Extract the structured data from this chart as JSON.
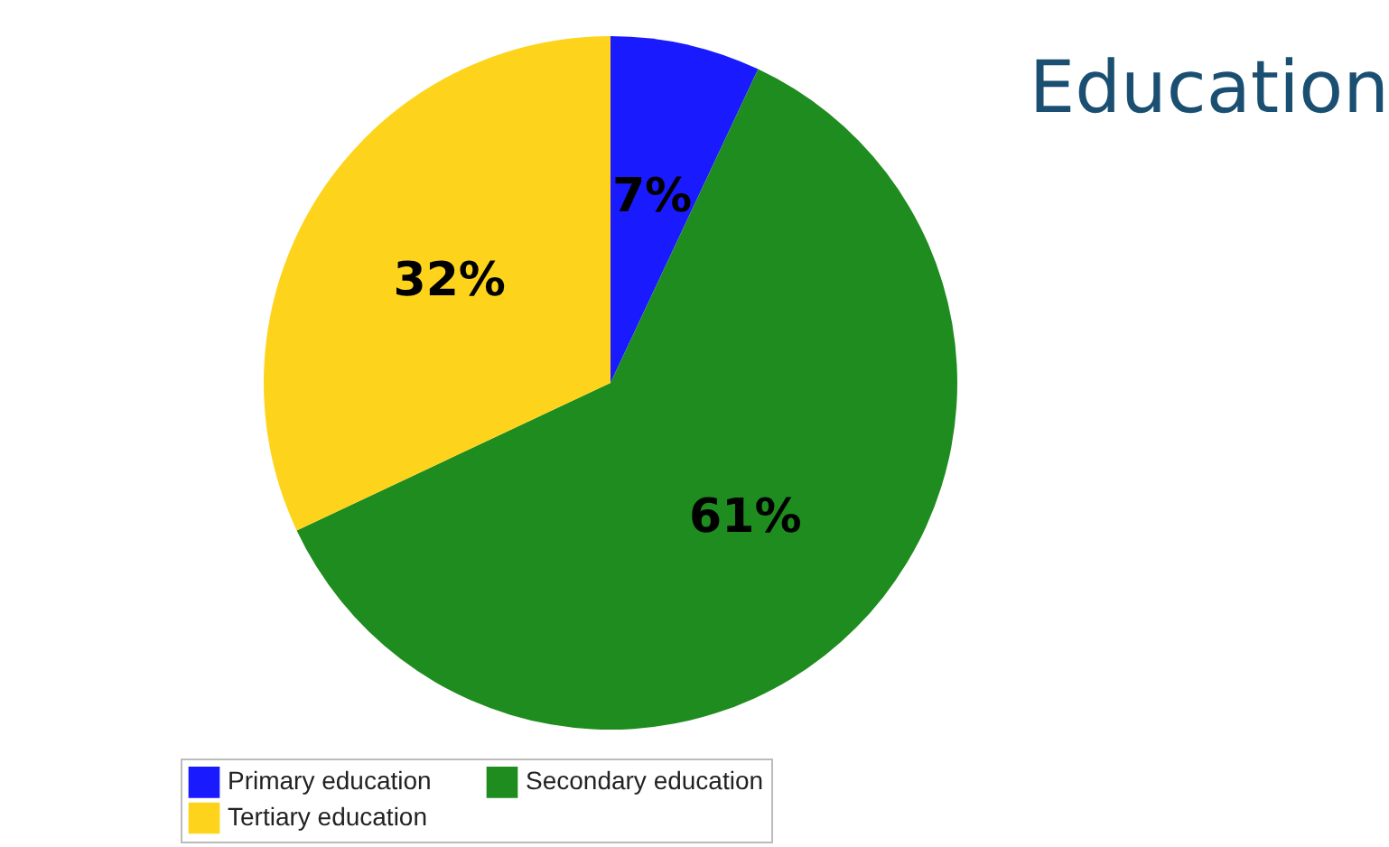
{
  "chart_data": {
    "type": "pie",
    "title": "Education",
    "categories": [
      "Primary education",
      "Secondary education",
      "Tertiary education"
    ],
    "values": [
      7,
      61,
      32
    ],
    "value_labels": [
      "7%",
      "61%",
      "32%"
    ],
    "colors": [
      "#1a1aff",
      "#1e8c1e",
      "#fdd41b"
    ],
    "legend": "bottom"
  }
}
